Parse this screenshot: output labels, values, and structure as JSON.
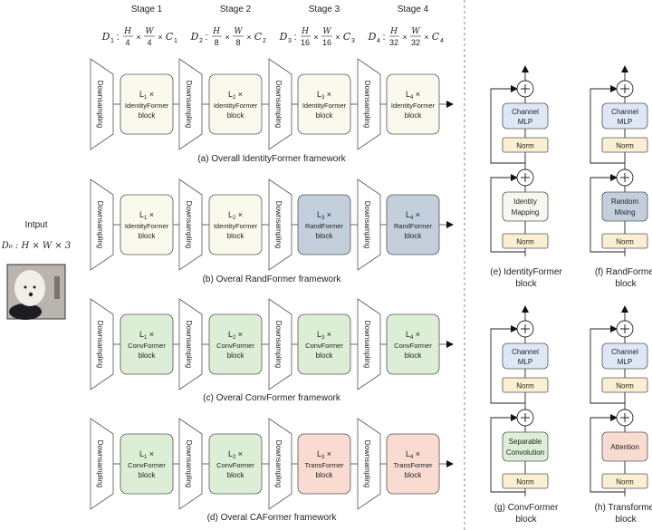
{
  "stages": [
    "Stage 1",
    "Stage 2",
    "Stage 3",
    "Stage 4"
  ],
  "formulas": [
    {
      "d": "D",
      "sub": "1",
      "hn": "H",
      "hd": "4",
      "wn": "W",
      "wd": "4",
      "c": "C",
      "csub": "1"
    },
    {
      "d": "D",
      "sub": "2",
      "hn": "H",
      "hd": "8",
      "wn": "W",
      "wd": "8",
      "c": "C",
      "csub": "2"
    },
    {
      "d": "D",
      "sub": "3",
      "hn": "H",
      "hd": "16",
      "wn": "W",
      "wd": "16",
      "c": "C",
      "csub": "3"
    },
    {
      "d": "D",
      "sub": "4",
      "hn": "H",
      "hd": "32",
      "wn": "W",
      "wd": "32",
      "c": "C",
      "csub": "4"
    }
  ],
  "input": {
    "label": "Intput",
    "formula": "D₀ : H × W × 3"
  },
  "downsampling_label": "Downsampling",
  "colors": {
    "identity": "#fafaec",
    "rand": "#c3cfdc",
    "conv": "#dcefd6",
    "trans": "#f9dbd2",
    "norm": "#fbefd2",
    "mlp": "#dde7f5",
    "mapping": "#f7f7f1",
    "stroke": "#555555"
  },
  "rows": [
    {
      "caption": "(a) Overall IdentityFormer framework",
      "blocks": [
        {
          "l": "L",
          "n": "1",
          "name": "IdentityFormer",
          "sub": "block",
          "type": "identity"
        },
        {
          "l": "L",
          "n": "2",
          "name": "IdentityFormer",
          "sub": "block",
          "type": "identity"
        },
        {
          "l": "L",
          "n": "3",
          "name": "IdentityFormer",
          "sub": "block",
          "type": "identity"
        },
        {
          "l": "L",
          "n": "4",
          "name": "IdentityFormer",
          "sub": "block",
          "type": "identity"
        }
      ]
    },
    {
      "caption": "(b) Overal RandFormer framework",
      "blocks": [
        {
          "l": "L",
          "n": "1",
          "name": "IdentityFormer",
          "sub": "block",
          "type": "identity"
        },
        {
          "l": "L",
          "n": "2",
          "name": "IdentityFormer",
          "sub": "block",
          "type": "identity"
        },
        {
          "l": "L",
          "n": "3",
          "name": "RandFormer",
          "sub": "block",
          "type": "rand"
        },
        {
          "l": "L",
          "n": "4",
          "name": "RandFormer",
          "sub": "block",
          "type": "rand"
        }
      ]
    },
    {
      "caption": "(c) Overal ConvFormer framework",
      "blocks": [
        {
          "l": "L",
          "n": "1",
          "name": "ConvFormer",
          "sub": "block",
          "type": "conv"
        },
        {
          "l": "L",
          "n": "2",
          "name": "ConvFormer",
          "sub": "block",
          "type": "conv"
        },
        {
          "l": "L",
          "n": "3",
          "name": "ConvFormer",
          "sub": "block",
          "type": "conv"
        },
        {
          "l": "L",
          "n": "4",
          "name": "ConvFormer",
          "sub": "block",
          "type": "conv"
        }
      ]
    },
    {
      "caption": "(d) Overal CAFormer framework",
      "blocks": [
        {
          "l": "L",
          "n": "1",
          "name": "ConvFormer",
          "sub": "block",
          "type": "conv"
        },
        {
          "l": "L",
          "n": "2",
          "name": "ConvFormer",
          "sub": "block",
          "type": "conv"
        },
        {
          "l": "L",
          "n": "3",
          "name": "TransFormer",
          "sub": "block",
          "type": "trans"
        },
        {
          "l": "L",
          "n": "4",
          "name": "TransFormer",
          "sub": "block",
          "type": "trans"
        }
      ]
    }
  ],
  "panels": [
    {
      "caption": [
        "(e) IdentityFormer",
        "block"
      ],
      "mixer": [
        "Identity",
        "Mapping"
      ],
      "mixer_type": "mapping",
      "mlp": [
        "Channel",
        "MLP"
      ],
      "norm": "Norm"
    },
    {
      "caption": [
        "(f) RandFormer",
        "block"
      ],
      "mixer": [
        "Random",
        "Mixing"
      ],
      "mixer_type": "rand",
      "mlp": [
        "Channel",
        "MLP"
      ],
      "norm": "Norm"
    },
    {
      "caption": [
        "(g) ConvFormer",
        "block"
      ],
      "mixer": [
        "Separable",
        "Convolution"
      ],
      "mixer_type": "conv",
      "mlp": [
        "Channel",
        "MLP"
      ],
      "norm": "Norm"
    },
    {
      "caption": [
        "(h) Transformer",
        "block"
      ],
      "mixer": [
        "Attention"
      ],
      "mixer_type": "trans",
      "mlp": [
        "Channel",
        "MLP"
      ],
      "norm": "Norm"
    }
  ]
}
